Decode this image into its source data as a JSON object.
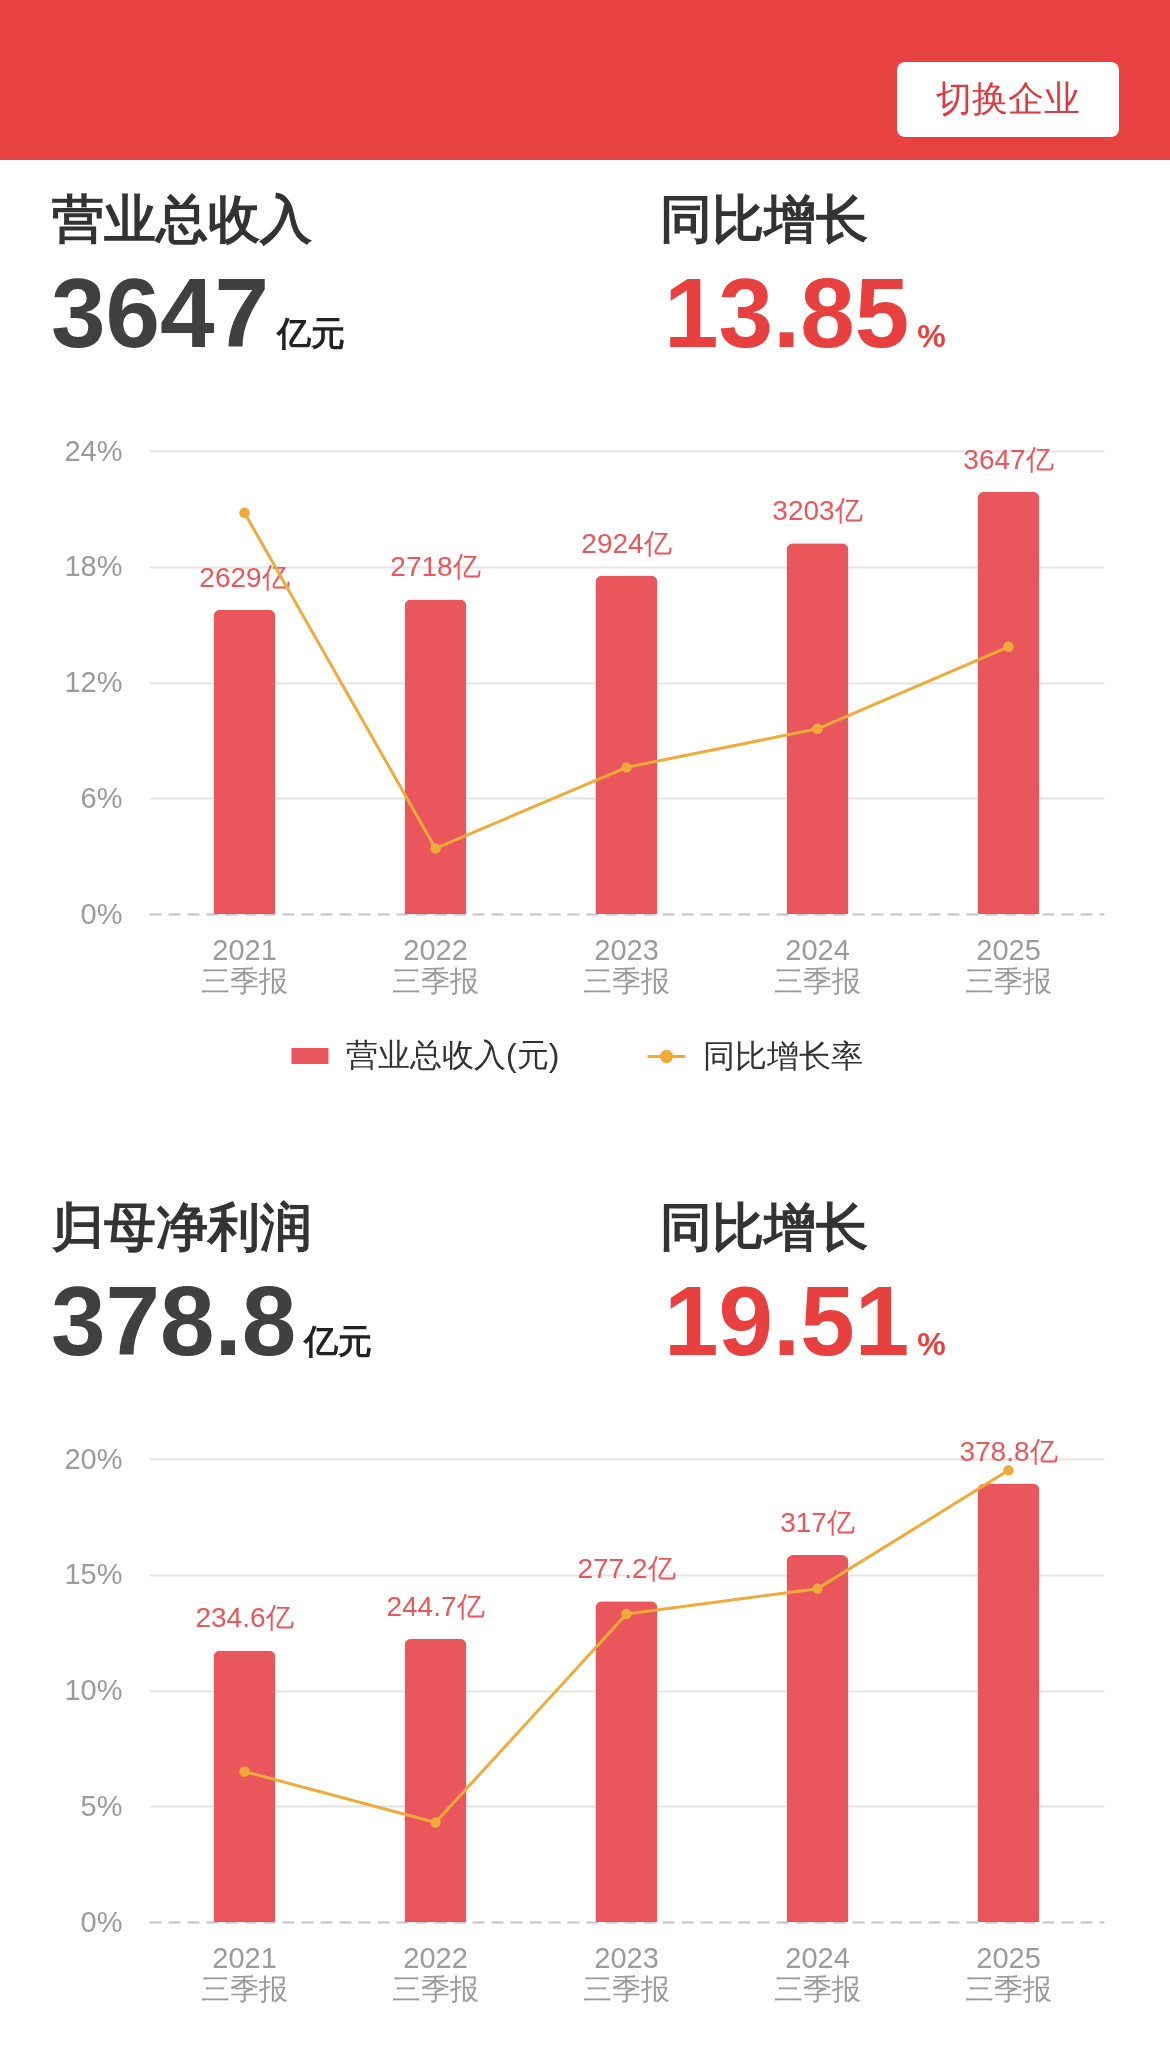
{
  "chart_data": [
    {
      "type": "other",
      "annotations": [
        "切换企业",
        "营业总收入",
        "3647",
        "亿元",
        "同比增长",
        "13.85",
        "%"
      ]
    },
    {
      "type": "bar",
      "categories": [
        "2021\n三季报",
        "2022\n三季报",
        "2023\n三季报",
        "2024\n三季报",
        "2025\n三季报"
      ],
      "series": [
        {
          "name": "营业总收入(元)",
          "type": "bar",
          "axis": "y2",
          "color": "#e9565b",
          "values": [
            2629,
            2718,
            2924,
            3203,
            3647
          ],
          "value_labels": [
            "2629亿",
            "2718亿",
            "2924亿",
            "3203亿",
            "3647亿"
          ]
        },
        {
          "name": "同比增长率",
          "type": "line",
          "color": "#f0aa3a",
          "values": [
            20.8,
            3.4,
            7.6,
            9.6,
            13.85
          ]
        }
      ],
      "ylim": [
        0,
        24
      ],
      "yticks": [
        {
          "value": 0,
          "label": "0%"
        },
        {
          "value": 6,
          "label": "6%"
        },
        {
          "value": 12,
          "label": "12%"
        },
        {
          "value": 18,
          "label": "18%"
        },
        {
          "value": 24,
          "label": "24%"
        }
      ],
      "grid": "y",
      "legend": "bottom",
      "marker": "circle"
    },
    {
      "type": "other",
      "annotations": [
        "归母净利润",
        "378.8",
        "亿元",
        "同比增长",
        "19.51",
        "%"
      ]
    },
    {
      "type": "bar",
      "categories": [
        "2021\n三季报",
        "2022\n三季报",
        "2023\n三季报",
        "2024\n三季报",
        "2025\n三季报"
      ],
      "series": [
        {
          "type": "bar",
          "axis": "y2",
          "color": "#e9565b",
          "values": [
            234.6,
            244.7,
            277.2,
            317,
            378.8
          ],
          "value_labels": [
            "234.6亿",
            "244.7亿",
            "277.2亿",
            "317亿",
            "378.8亿"
          ]
        },
        {
          "type": "line",
          "color": "#f0aa3a",
          "values": [
            6.5,
            4.3,
            13.3,
            14.4,
            19.51
          ]
        }
      ],
      "ylim": [
        0,
        20
      ],
      "yticks": [
        {
          "value": 0,
          "label": "0%"
        },
        {
          "value": 5,
          "label": "5%"
        },
        {
          "value": 10,
          "label": "10%"
        },
        {
          "value": 15,
          "label": "15%"
        },
        {
          "value": 20,
          "label": "20%"
        }
      ],
      "grid": "y",
      "marker": "circle"
    }
  ]
}
